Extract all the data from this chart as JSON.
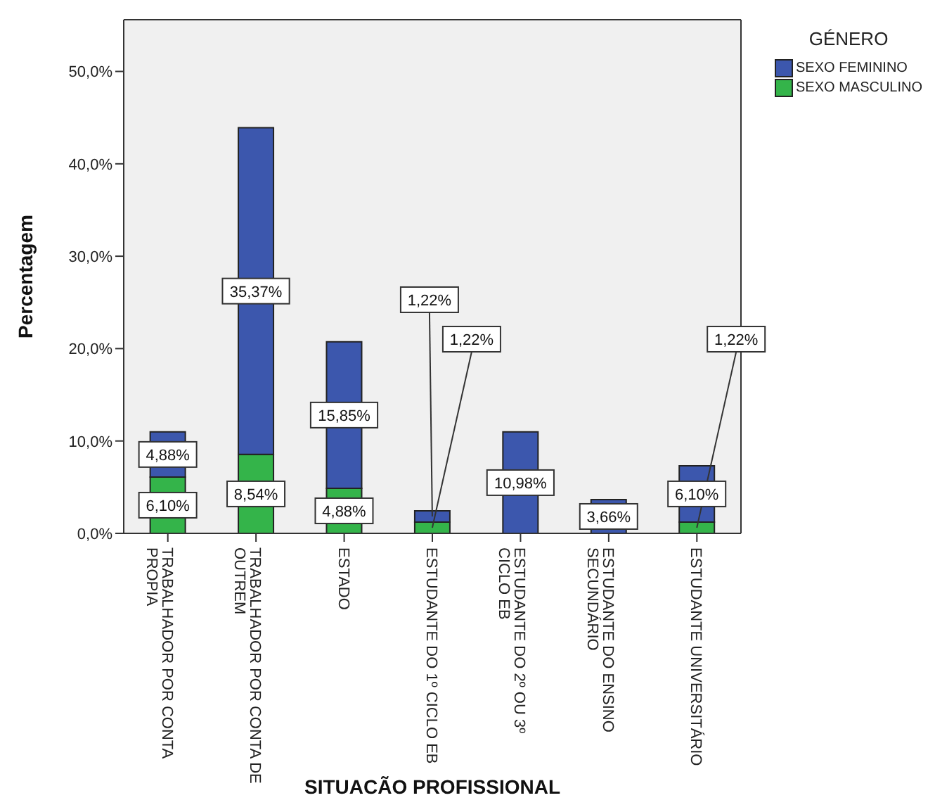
{
  "chart_data": {
    "type": "bar",
    "stacked": true,
    "xlabel": "SITUACÃO PROFISSIONAL",
    "ylabel": "Percentagem",
    "legend_title": "GÉNERO",
    "legend": "top right",
    "grid": false,
    "categories": [
      "TRABALHADOR POR CONTA PROPIA",
      "TRABALHADOR POR CONTA DE OUTREM",
      "ESTADO",
      "ESTUDANTE DO 1º CICLO EB",
      "ESTUDANTE DO 2º OU 3º CICLO EB",
      "ESTUDANTE DO ENSINO SECUNDÁRIO",
      "ESTUDANTE UNIVERSITÁRIO"
    ],
    "series": [
      {
        "name": "SEXO MASCULINO",
        "color": "#34b44a",
        "values": [
          6.1,
          8.54,
          4.88,
          1.22,
          null,
          null,
          1.22
        ],
        "value_labels": [
          "6,10%",
          "8,54%",
          "4,88%",
          "1,22%",
          null,
          null,
          "1,22%"
        ]
      },
      {
        "name": "SEXO FEMININO",
        "color": "#3c57ad",
        "values": [
          4.88,
          35.37,
          15.85,
          1.22,
          10.98,
          3.66,
          6.1
        ],
        "value_labels": [
          "4,88%",
          "35,37%",
          "15,85%",
          "1,22%",
          "10,98%",
          "3,66%",
          "6,10%"
        ]
      }
    ],
    "ylim": [
      0,
      55.6
    ],
    "yticks": [
      {
        "value": 0,
        "label": "0,0%"
      },
      {
        "value": 10,
        "label": "10,0%"
      },
      {
        "value": 20,
        "label": "20,0%"
      },
      {
        "value": 30,
        "label": "30,0%"
      },
      {
        "value": 40,
        "label": "40,0%"
      },
      {
        "value": 50,
        "label": "50,0%"
      }
    ]
  }
}
